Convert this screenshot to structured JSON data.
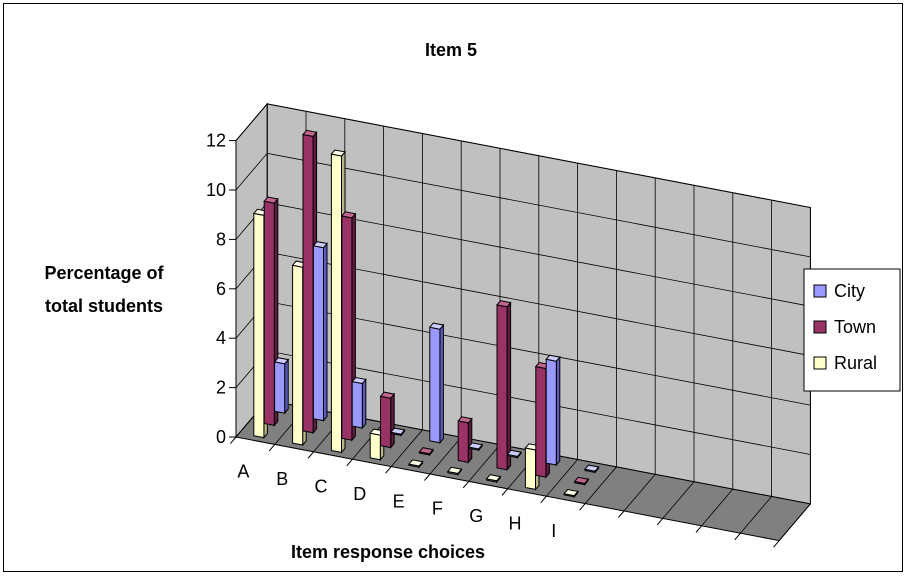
{
  "chart_data": {
    "type": "bar",
    "title": "Item 5",
    "xlabel": "Item response choices",
    "ylabel": "Percentage of total students",
    "ylabel_lines": [
      "Percentage of",
      "total students"
    ],
    "ylim": [
      0,
      12
    ],
    "yticks": [
      "0",
      "2",
      "4",
      "6",
      "8",
      "10",
      "12"
    ],
    "categories": [
      "A",
      "B",
      "C",
      "D",
      "E",
      "F",
      "G",
      "H",
      "I"
    ],
    "series": [
      {
        "name": "City",
        "values": [
          2,
          7,
          1.8,
          0,
          4.6,
          0,
          0,
          4.2,
          0
        ]
      },
      {
        "name": "Town",
        "values": [
          9,
          12,
          9,
          2,
          0,
          1.6,
          6.6,
          4.4,
          0
        ]
      },
      {
        "name": "Rural",
        "values": [
          9,
          7.2,
          12,
          1,
          0,
          0,
          0,
          1.6,
          0
        ]
      }
    ],
    "grid": true,
    "legend": "right",
    "colors": {
      "City": {
        "front": "#9999ff",
        "side": "#5d5dbc",
        "top": "#ccccff"
      },
      "Town": {
        "front": "#993366",
        "side": "#5e1d3e",
        "top": "#c06690"
      },
      "Rural": {
        "front": "#ffffcc",
        "side": "#b7b787",
        "top": "#ffffe8"
      },
      "wall": "#c0c0c0",
      "floor": "#808080"
    }
  }
}
